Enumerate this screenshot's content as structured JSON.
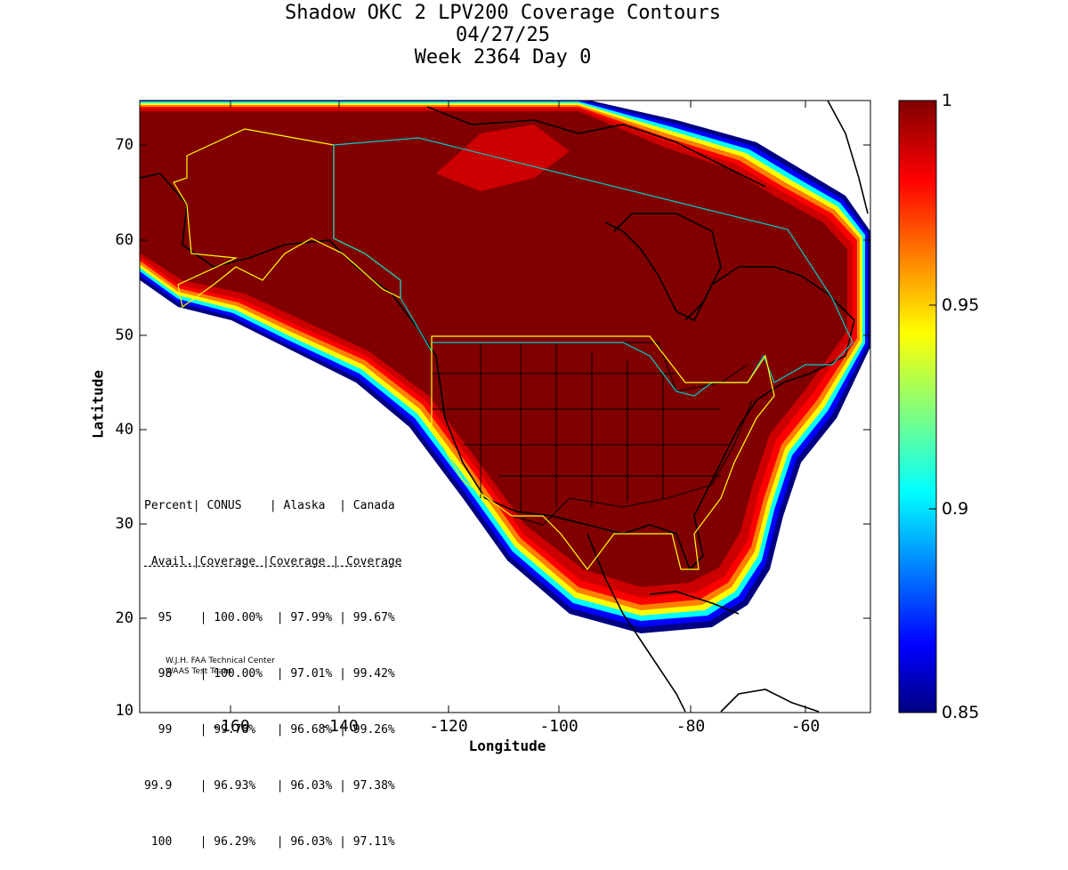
{
  "title": {
    "line1": "Shadow OKC 2 LPV200 Coverage Contours",
    "line2": "04/27/25",
    "line3": "Week 2364 Day 0"
  },
  "axes": {
    "xlabel": "Longitude",
    "ylabel": "Latitude",
    "xticks": [
      "-160",
      "-140",
      "-120",
      "-100",
      "-80",
      "-60"
    ],
    "yticks": [
      "70",
      "60",
      "50",
      "40",
      "30",
      "20",
      "10"
    ],
    "xlim": [
      -175,
      -50
    ],
    "ylim": [
      10,
      75
    ]
  },
  "colorbar": {
    "ticks": [
      "1",
      "0.95",
      "0.9",
      "0.85"
    ],
    "range": [
      0.85,
      1.0
    ],
    "colormap": "jet"
  },
  "stats_table": {
    "header1": "Percent| CONUS    | Alaska  | Canada",
    "header2": " Avail.|Coverage |Coverage | Coverage",
    "rows": [
      "  95    | 100.00%  | 97.99% | 99.67%",
      "  98    | 100.00%  | 97.01% | 99.42%",
      "  99    | 99.78%   | 96.68% | 99.26%",
      "99.9    | 96.93%   | 96.03% | 97.38%",
      " 100    | 96.29%   | 96.03% | 97.11%"
    ]
  },
  "credit": {
    "line1": "W.J.H. FAA Technical Center",
    "line2": "WAAS Test Team"
  },
  "colors": {
    "full_coverage": "#800000",
    "red": "#cc0000",
    "orange": "#ff8000",
    "yellow": "#ffff00",
    "cyan": "#00ffff",
    "blue": "#0000ff",
    "navy": "#000080"
  }
}
